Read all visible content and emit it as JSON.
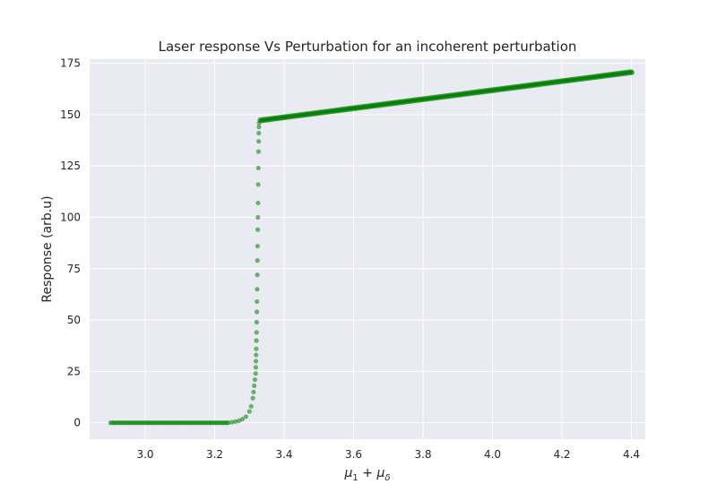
{
  "chart_data": {
    "type": "scatter",
    "title": "Laser response Vs Perturbation for an incoherent perturbation",
    "xlabel": {
      "main1": "μ",
      "sub1": "1",
      "op": " + ",
      "main2": "μ",
      "sub2": "δ"
    },
    "ylabel": "Response (arb.u)",
    "xlim": [
      2.84,
      4.44
    ],
    "ylim": [
      -8,
      177
    ],
    "xticks": [
      3.0,
      3.2,
      3.4,
      3.6,
      3.8,
      4.0,
      4.2,
      4.4
    ],
    "xtick_labels": [
      "3.0",
      "3.2",
      "3.4",
      "3.6",
      "3.8",
      "4.0",
      "4.2",
      "4.4"
    ],
    "yticks": [
      0,
      25,
      50,
      75,
      100,
      125,
      150,
      175
    ],
    "ytick_labels": [
      "0",
      "25",
      "50",
      "75",
      "100",
      "125",
      "150",
      "175"
    ],
    "grid": true,
    "background": "#eaeaf2",
    "grid_color": "#ffffff",
    "marker_color": "#008000",
    "series": [
      {
        "name": "response",
        "x_range": [
          2.9,
          4.4
        ],
        "dense_step": 0.005,
        "low_value": 0,
        "onset_x": 3.24,
        "onset_points": [
          [
            3.25,
            0.3
          ],
          [
            3.26,
            0.6
          ],
          [
            3.27,
            1.0
          ],
          [
            3.28,
            1.8
          ],
          [
            3.29,
            3.0
          ],
          [
            3.3,
            5.5
          ],
          [
            3.305,
            8.0
          ],
          [
            3.31,
            12.0
          ],
          [
            3.312,
            15.0
          ],
          [
            3.314,
            18.0
          ],
          [
            3.316,
            21.0
          ]
        ],
        "transition_y": [
          24,
          27,
          30,
          33,
          36,
          40,
          44,
          49,
          54,
          59,
          65,
          72,
          79,
          86,
          94,
          100,
          107,
          116,
          124,
          132,
          137,
          141,
          144,
          146
        ],
        "transition_x_range": [
          3.318,
          3.328
        ],
        "upper_start": [
          3.33,
          147.5
        ],
        "upper_end": [
          4.4,
          171.0
        ]
      }
    ]
  }
}
